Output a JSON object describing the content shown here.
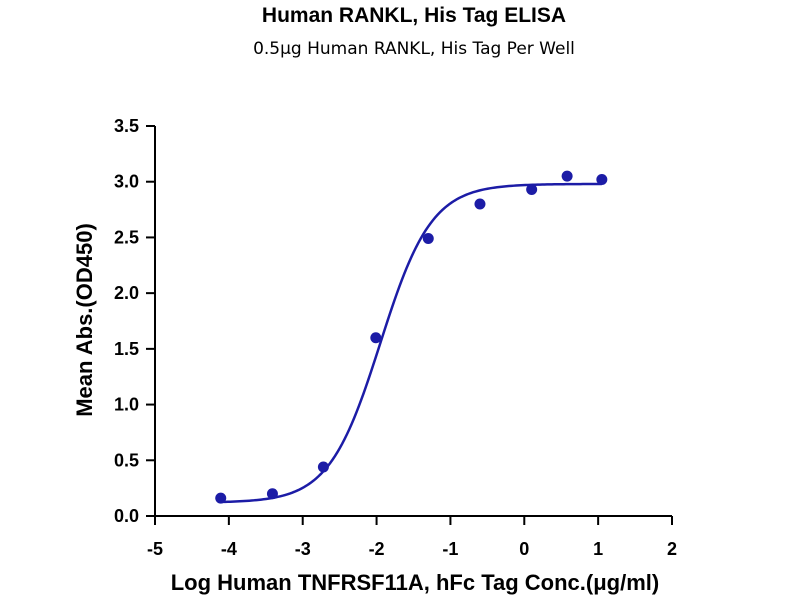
{
  "colors": {
    "series": "#1c1ca6",
    "axis": "#000000"
  },
  "chart_data": {
    "type": "scatter",
    "title": "Human RANKL, His Tag ELISA",
    "subtitle": "0.5μg Human RANKL, His Tag Per Well",
    "xlabel": "Log Human TNFRSF11A, hFc Tag Conc.(μg/ml)",
    "ylabel": "Mean Abs.(OD450)",
    "xlim": [
      -5,
      2
    ],
    "ylim": [
      0,
      3.5
    ],
    "x_ticks": [
      -5,
      -4,
      -3,
      -2,
      -1,
      0,
      1,
      2
    ],
    "x_tick_labels": [
      "-5",
      "-4",
      "-3",
      "-2",
      "-1",
      "0",
      "1",
      "2"
    ],
    "y_ticks": [
      0,
      0.5,
      1,
      1.5,
      2,
      2.5,
      3,
      3.5
    ],
    "y_tick_labels": [
      "0.0",
      "0.5",
      "1.0",
      "1.5",
      "2.0",
      "2.5",
      "3.0",
      "3.5"
    ],
    "grid": false,
    "series": [
      {
        "points": [
          {
            "x": -4.11,
            "y": 0.16
          },
          {
            "x": -3.41,
            "y": 0.2
          },
          {
            "x": -2.72,
            "y": 0.44
          },
          {
            "x": -2.01,
            "y": 1.6
          },
          {
            "x": -1.3,
            "y": 2.49
          },
          {
            "x": -0.6,
            "y": 2.8
          },
          {
            "x": 0.1,
            "y": 2.93
          },
          {
            "x": 0.58,
            "y": 3.05
          },
          {
            "x": 1.05,
            "y": 3.02
          }
        ],
        "fit": {
          "model": "4PL",
          "bottom": 0.12,
          "top": 2.98,
          "logEC50": -1.95,
          "hill": 1.25,
          "x_range": [
            -4.11,
            1.05
          ]
        }
      }
    ]
  }
}
